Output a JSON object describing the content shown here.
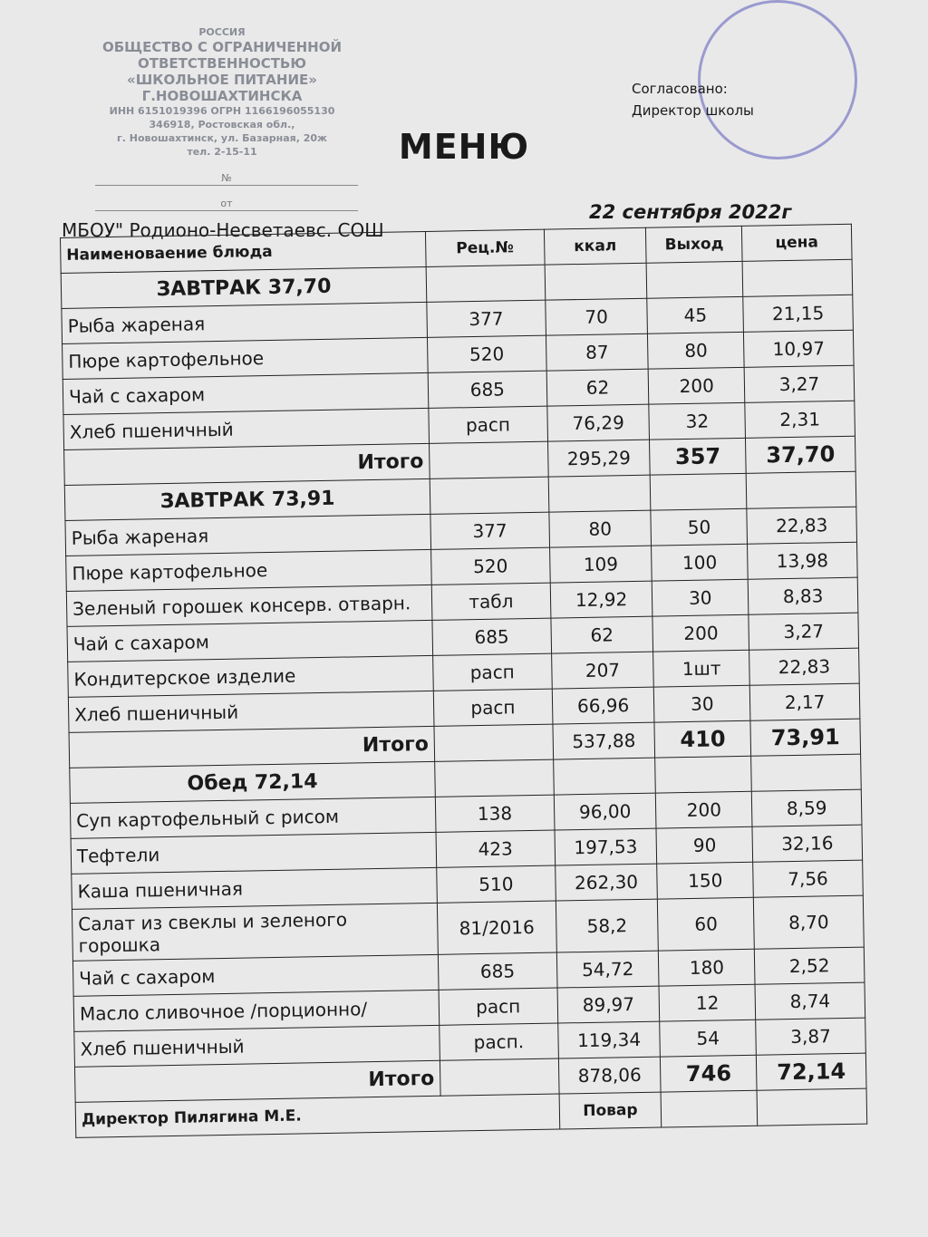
{
  "stamp": {
    "lines": [
      "РОССИЯ",
      "ОБЩЕСТВО С ОГРАНИЧЕННОЙ",
      "ОТВЕТСТВЕННОСТЬЮ",
      "«ШКОЛЬНОЕ ПИТАНИЕ»",
      "Г.НОВОШАХТИНСКА",
      "ИНН 6151019396   ОГРН 1166196055130",
      "346918, Ростовская обл.,",
      "г. Новошахтинск, ул. Базарная, 20ж",
      "тел. 2-15-11"
    ],
    "number_label": "№",
    "date_label": "от"
  },
  "approval": {
    "agreed": "Согласовано:",
    "director": "Директор школы"
  },
  "title": "МЕНЮ",
  "school": "МБОУ\" Родионо-Несветаевс. СОШ",
  "date": "22 сентября 2022г",
  "table": {
    "columns": [
      "Наименоваение блюда",
      "Рец.№",
      "ккал",
      "Выход",
      "цена"
    ],
    "sections": [
      {
        "title": "ЗАВТРАК 37,70",
        "rows": [
          [
            "Рыба жареная",
            "377",
            "70",
            "45",
            "21,15"
          ],
          [
            "Пюре картофельное",
            "520",
            "87",
            "80",
            "10,97"
          ],
          [
            "Чай с сахаром",
            "685",
            "62",
            "200",
            "3,27"
          ],
          [
            "Хлеб пшеничный",
            "расп",
            "76,29",
            "32",
            "2,31"
          ]
        ],
        "total": [
          "Итого",
          "295,29",
          "357",
          "37,70"
        ]
      },
      {
        "title": "ЗАВТРАК 73,91",
        "rows": [
          [
            "Рыба жареная",
            "377",
            "80",
            "50",
            "22,83"
          ],
          [
            "Пюре картофельное",
            "520",
            "109",
            "100",
            "13,98"
          ],
          [
            "Зеленый горошек консерв. отварн.",
            "табл",
            "12,92",
            "30",
            "8,83"
          ],
          [
            "Чай с сахаром",
            "685",
            "62",
            "200",
            "3,27"
          ],
          [
            "Кондитерское изделие",
            "расп",
            "207",
            "1шт",
            "22,83"
          ],
          [
            "Хлеб пшеничный",
            "расп",
            "66,96",
            "30",
            "2,17"
          ]
        ],
        "total": [
          "Итого",
          "537,88",
          "410",
          "73,91"
        ]
      },
      {
        "title": "Обед 72,14",
        "rows": [
          [
            "Суп картофельный с рисом",
            "138",
            "96,00",
            "200",
            "8,59"
          ],
          [
            "Тефтели",
            "423",
            "197,53",
            "90",
            "32,16"
          ],
          [
            "Каша пшеничная",
            "510",
            "262,30",
            "150",
            "7,56"
          ],
          [
            "Салат из свеклы и зеленого горошка",
            "81/2016",
            "58,2",
            "60",
            "8,70"
          ],
          [
            "Чай с сахаром",
            "685",
            "54,72",
            "180",
            "2,52"
          ],
          [
            "Масло сливочное /порционно/",
            "расп",
            "89,97",
            "12",
            "8,74"
          ],
          [
            "Хлеб пшеничный",
            "расп.",
            "119,34",
            "54",
            "3,87"
          ]
        ],
        "total": [
          "Итого",
          "878,06",
          "746",
          "72,14"
        ]
      }
    ],
    "footer": {
      "director": "Директор Пилягина М.Е.",
      "cook": "Повар"
    }
  }
}
